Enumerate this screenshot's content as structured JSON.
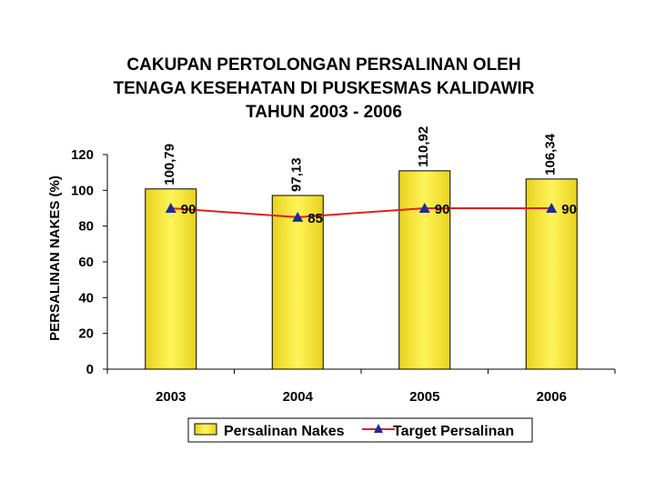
{
  "chart_data": {
    "type": "bar",
    "title_lines": [
      "CAKUPAN PERTOLONGAN PERSALINAN OLEH",
      "TENAGA KESEHATAN DI PUSKESMAS KALIDAWIR",
      "TAHUN 2003 - 2006"
    ],
    "ylabel": "PERSALINAN NAKES (%)",
    "xlabel": "",
    "categories": [
      "2003",
      "2004",
      "2005",
      "2006"
    ],
    "ylim": [
      0,
      120
    ],
    "yticks": [
      0,
      20,
      40,
      60,
      80,
      100,
      120
    ],
    "series": [
      {
        "name": "Persalinan Nakes",
        "kind": "bar",
        "values": [
          100.79,
          97.13,
          110.92,
          106.34
        ],
        "labels": [
          "100,79",
          "97,13",
          "110,92",
          "106,34"
        ],
        "color": "#F5E63C"
      },
      {
        "name": "Target Persalinan",
        "kind": "line",
        "values": [
          90,
          85,
          90,
          90
        ],
        "labels": [
          "90",
          "85",
          "90",
          "90"
        ],
        "color": "#E21E1E",
        "marker_color": "#1A2B9E"
      }
    ],
    "grid": false,
    "legend_position": "bottom"
  }
}
